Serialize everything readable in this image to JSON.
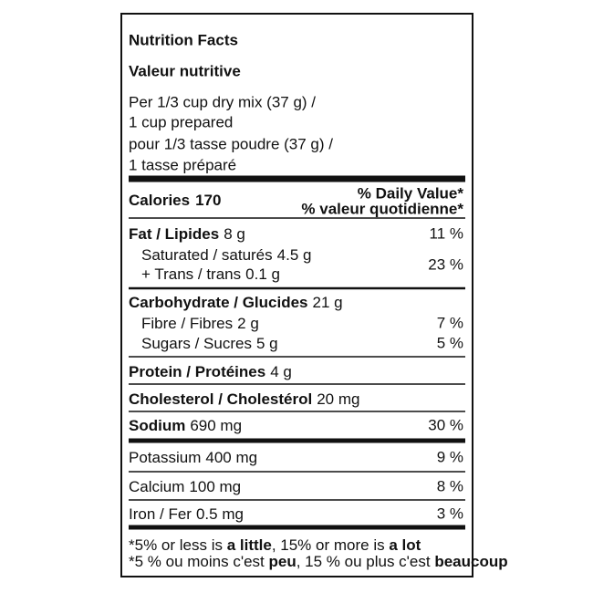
{
  "header": {
    "title": "Nutrition Facts",
    "title_fr": "Valeur nutritive",
    "serving": [
      "Per 1/3 cup dry mix (37 g) /",
      "1 cup prepared",
      "pour 1/3 tasse poudre (37 g) /",
      "1 tasse préparé"
    ]
  },
  "calories": {
    "label": "Calories",
    "value": "170"
  },
  "dv_header": [
    "% Daily Value*",
    "% valeur quotidienne*"
  ],
  "nutrients": [
    {
      "name": "Fat / Lipides",
      "amount": "8 g",
      "dv": "11 %"
    },
    {
      "name": "Saturated / saturés",
      "amount": "4.5 g",
      "dv": "23 %"
    },
    {
      "name": "+ Trans / trans",
      "amount": "0.1 g"
    },
    {
      "name": "Carbohydrate / Glucides",
      "amount": "21 g"
    },
    {
      "name": "Fibre / Fibres",
      "amount": "2 g",
      "dv": "7 %"
    },
    {
      "name": "Sugars / Sucres",
      "amount": "5 g",
      "dv": "5 %"
    },
    {
      "name": "Protein / Protéines",
      "amount": "4 g"
    },
    {
      "name": "Cholesterol / Cholestérol",
      "amount": "20 mg"
    },
    {
      "name": "Sodium",
      "amount": "690 mg",
      "dv": "30 %"
    },
    {
      "name": "Potassium",
      "amount": "400 mg",
      "dv": "9 %"
    },
    {
      "name": "Calcium",
      "amount": "100 mg",
      "dv": "8 %"
    },
    {
      "name": "Iron / Fer",
      "amount": "0.5 mg",
      "dv": "3 %"
    }
  ],
  "footnote": {
    "en": [
      "*5% or less is ",
      "a little",
      ", 15% or more is ",
      "a lot"
    ],
    "fr": [
      "*5 % ou moins c'est ",
      "peu",
      ", 15 % ou plus c'est ",
      "beaucoup"
    ]
  }
}
